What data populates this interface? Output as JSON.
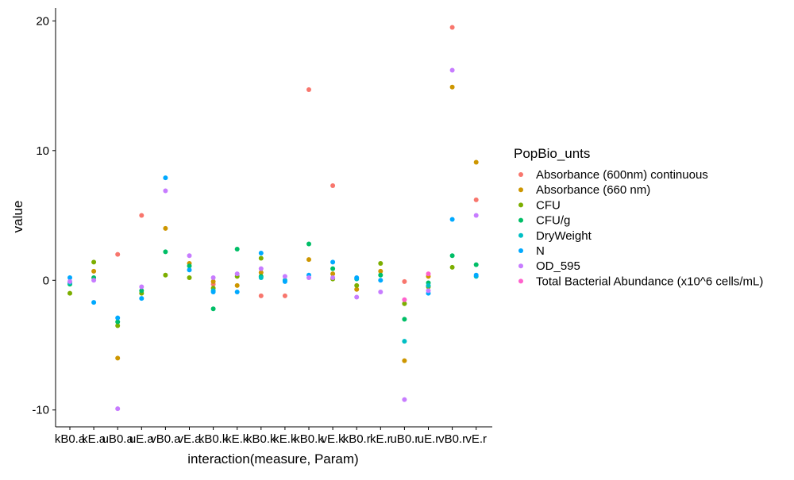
{
  "chart_data": {
    "type": "scatter",
    "xlabel": "interaction(measure, Param)",
    "ylabel": "value",
    "ylim": [
      -11.3,
      21.0
    ],
    "yticks": [
      -10,
      0,
      10,
      20
    ],
    "grid": false,
    "legend_title": "PopBio_unts",
    "legend_position": "right",
    "categories": [
      "kB0.a",
      "kE.a",
      "uB0.a",
      "uE.a",
      "vB0.a",
      "vE.a",
      "kB0.k",
      "kE.k",
      "kB0.k",
      "kE.k",
      "kB0.k",
      "vE.k",
      "kB0.r",
      "kE.r",
      "uB0.r",
      "uE.r",
      "vB0.r",
      "vE.r"
    ],
    "series": [
      {
        "name": "Absorbance (600nm) continuous",
        "color": "#F8766D",
        "values": [
          null,
          null,
          2.0,
          5.0,
          null,
          null,
          -0.3,
          null,
          -1.2,
          -1.2,
          14.7,
          7.3,
          null,
          null,
          -0.1,
          null,
          19.5,
          6.2
        ]
      },
      {
        "name": "Absorbance (660 nm)",
        "color": "#CD9600",
        "values": [
          null,
          0.7,
          -6.0,
          null,
          4.0,
          1.3,
          -0.1,
          -0.4,
          0.6,
          null,
          1.6,
          0.5,
          -0.7,
          0.7,
          -6.2,
          0.3,
          14.9,
          9.1
        ]
      },
      {
        "name": "CFU",
        "color": "#7CAE00",
        "values": [
          -1.0,
          1.4,
          -3.5,
          -1.0,
          0.4,
          0.2,
          -0.6,
          0.3,
          1.7,
          null,
          null,
          0.1,
          -0.4,
          1.3,
          -1.8,
          -0.5,
          1.0,
          null
        ]
      },
      {
        "name": "CFU/g",
        "color": "#00BE67",
        "values": [
          -0.3,
          0.2,
          -3.2,
          -0.8,
          2.2,
          1.1,
          -2.2,
          2.4,
          0.3,
          null,
          2.8,
          0.9,
          null,
          0.4,
          -3.0,
          -0.2,
          1.9,
          1.2
        ]
      },
      {
        "name": "DryWeight",
        "color": "#00BFC4",
        "values": [
          -0.2,
          null,
          null,
          null,
          null,
          null,
          -0.8,
          null,
          0.2,
          0.0,
          null,
          null,
          0.1,
          null,
          -4.7,
          -0.4,
          null,
          0.3
        ]
      },
      {
        "name": "N",
        "color": "#00A9FF",
        "values": [
          0.2,
          -1.7,
          -2.9,
          -1.4,
          7.9,
          0.8,
          -0.9,
          -0.9,
          2.1,
          -0.1,
          0.4,
          1.4,
          0.2,
          0.0,
          null,
          -1.0,
          4.7,
          0.4
        ]
      },
      {
        "name": "OD_595",
        "color": "#C77CFF",
        "values": [
          -0.1,
          0.0,
          -9.9,
          -0.5,
          6.9,
          1.9,
          0.2,
          0.5,
          0.9,
          0.3,
          0.2,
          0.2,
          -1.3,
          -0.9,
          -9.2,
          -0.8,
          16.2,
          5.0
        ]
      },
      {
        "name": "Total Bacterial Abundance (x10^6 cells/mL)",
        "color": "#FF61CC",
        "values": [
          null,
          null,
          null,
          null,
          null,
          null,
          null,
          null,
          null,
          null,
          null,
          null,
          null,
          null,
          -1.5,
          0.5,
          null,
          null
        ]
      }
    ]
  }
}
